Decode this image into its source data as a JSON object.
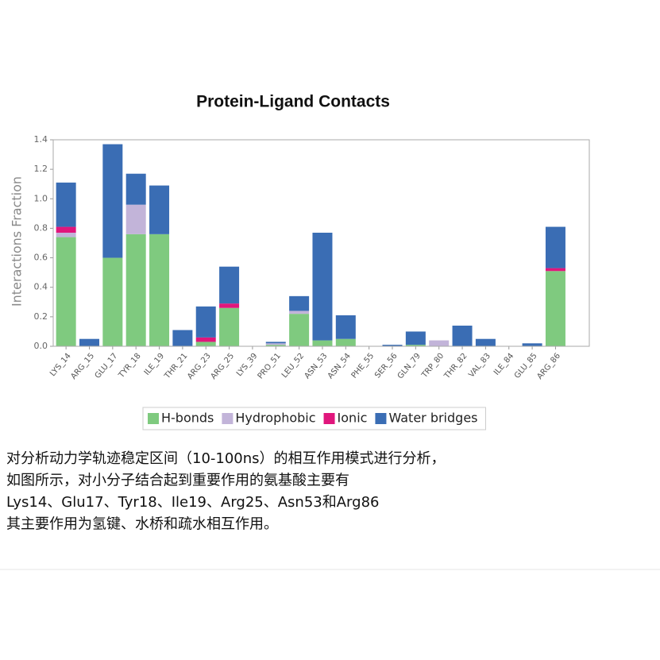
{
  "chart_data": {
    "type": "stacked_bar",
    "title": "Protein-Ligand Contacts",
    "y_label": "Interactions Fraction",
    "categories": [
      "LYS_14",
      "ARG_15",
      "GLU_17",
      "TYR_18",
      "ILE_19",
      "THR_21",
      "ARG_23",
      "ARG_25",
      "LYS_39",
      "PRO_51",
      "LEU_52",
      "ASN_53",
      "ASN_54",
      "PHE_55",
      "SER_56",
      "GLN_79",
      "TRP_80",
      "THR_82",
      "VAL_83",
      "ILE_84",
      "GLU_85",
      "ARG_86"
    ],
    "series": [
      {
        "name": "H-bonds",
        "color": "#7fca7f",
        "values": [
          0.74,
          0,
          0.6,
          0.76,
          0.76,
          0,
          0.03,
          0.26,
          0,
          0.01,
          0.22,
          0.04,
          0.05,
          0,
          0,
          0.01,
          0,
          0,
          0,
          0,
          0,
          0.51
        ]
      },
      {
        "name": "Hydrophobic",
        "color": "#c2b4d9",
        "values": [
          0.03,
          0,
          0,
          0.2,
          0,
          0,
          0,
          0,
          0,
          0.01,
          0.02,
          0,
          0,
          0,
          0,
          0,
          0.04,
          0,
          0,
          0,
          0,
          0
        ]
      },
      {
        "name": "Ionic",
        "color": "#e0167c",
        "values": [
          0.04,
          0,
          0,
          0,
          0,
          0,
          0.03,
          0.03,
          0,
          0,
          0,
          0,
          0,
          0,
          0,
          0,
          0,
          0,
          0,
          0,
          0,
          0.02
        ]
      },
      {
        "name": "Water bridges",
        "color": "#3a6db4",
        "values": [
          0.3,
          0.05,
          0.77,
          0.21,
          0.33,
          0.11,
          0.21,
          0.25,
          0,
          0.01,
          0.1,
          0.73,
          0.16,
          0,
          0.01,
          0.09,
          0,
          0.14,
          0.05,
          0,
          0.02,
          0.28
        ]
      }
    ],
    "ylim": [
      0,
      1.4
    ],
    "yticks": [
      {
        "value": 0,
        "label": "0.0"
      },
      0.2,
      0.4,
      0.6,
      0.8,
      {
        "value": 1,
        "label": "1.0"
      },
      1.2,
      1.4
    ]
  },
  "text": [
    "对分析动力学轨迹稳定区间（10-100ns）的相互作用模式进行分析，",
    "如图所示，对小分子结合起到重要作用的氨基酸主要有",
    "Lys14、Glu17、Tyr18、Ile19、Arg25、Asn53和Arg86",
    "其主要作用为氢键、水桥和疏水相互作用。"
  ]
}
